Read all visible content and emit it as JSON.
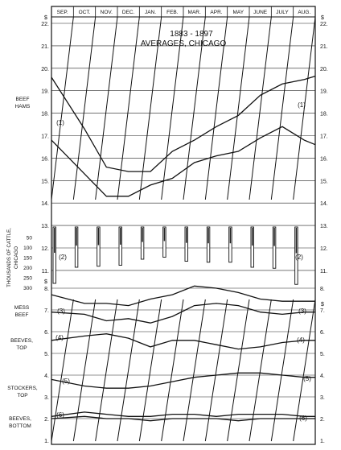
{
  "chart_data": {
    "type": "line",
    "title": "1883 - 1897",
    "subtitle": "AVERAGES, CHICAGO",
    "months": [
      "SEP.",
      "OCT.",
      "NOV.",
      "DEC.",
      "JAN.",
      "FEB.",
      "MAR.",
      "APR.",
      "MAY",
      "JUNE",
      "JULY",
      "AUG."
    ],
    "dollar_sign": "$",
    "y_ticks_upper": [
      "22.",
      "21.",
      "20.",
      "19.",
      "18.",
      "17.",
      "16.",
      "15.",
      "14.",
      "13.",
      "12.",
      "11."
    ],
    "y_ticks_lower": [
      "8.",
      "7.",
      "6.",
      "5.",
      "4.",
      "3.",
      "2.",
      "1."
    ],
    "cattle_ticks": [
      "50",
      "100",
      "150",
      "200",
      "250",
      "300"
    ],
    "left_labels": {
      "beef_hams": [
        "BEEF",
        "HAMS"
      ],
      "cattle_axis": [
        "THOUSANDS OF CATTLE,",
        "CHICAGO"
      ],
      "mess_beef": [
        "MESS",
        "BEEF"
      ],
      "beeves_top": [
        "BEEVES,",
        "TOP"
      ],
      "stockers_top": [
        "STOCKERS,",
        "TOP"
      ],
      "beeves_bottom": [
        "BEEVES,",
        "BOTTOM"
      ]
    },
    "series": [
      {
        "marker": "(1)",
        "values": [
          19.6,
          17.3,
          15.6,
          15.4,
          15.4,
          16.3,
          16.8,
          17.4,
          17.9,
          18.8,
          19.3,
          19.5
        ]
      },
      {
        "marker": "(1)",
        "values": [
          16.8,
          15.3,
          14.3,
          14.3,
          14.8,
          15.1,
          15.8,
          16.1,
          16.3,
          16.9,
          17.4,
          16.8
        ]
      },
      {
        "marker": "(2)",
        "values": [
          280,
          200,
          195,
          190,
          160,
          150,
          170,
          175,
          175,
          200,
          205,
          285
        ]
      },
      {
        "marker": "(3)",
        "values": [
          7.7,
          7.3,
          7.3,
          7.2,
          7.5,
          7.7,
          8.1,
          8.0,
          7.8,
          7.5,
          7.4,
          7.4
        ]
      },
      {
        "marker": "(3)",
        "values": [
          6.9,
          6.8,
          6.5,
          6.6,
          6.4,
          6.7,
          7.2,
          7.3,
          7.2,
          6.9,
          6.8,
          6.9
        ]
      },
      {
        "marker": "(4)",
        "values": [
          5.6,
          5.8,
          5.9,
          5.7,
          5.3,
          5.6,
          5.6,
          5.4,
          5.2,
          5.3,
          5.5,
          5.6
        ]
      },
      {
        "marker": "(5)",
        "values": [
          3.8,
          3.5,
          3.4,
          3.4,
          3.5,
          3.7,
          3.9,
          4.0,
          4.1,
          4.1,
          4.0,
          3.9
        ]
      },
      {
        "marker": "(6)",
        "values": [
          2.0,
          2.1,
          2.0,
          2.0,
          1.9,
          2.0,
          2.0,
          2.0,
          1.9,
          2.0,
          2.0,
          2.0
        ]
      },
      {
        "marker": "",
        "values": [
          2.1,
          2.3,
          2.2,
          2.1,
          2.1,
          2.2,
          2.2,
          2.1,
          2.2,
          2.2,
          2.2,
          2.1
        ]
      }
    ]
  }
}
